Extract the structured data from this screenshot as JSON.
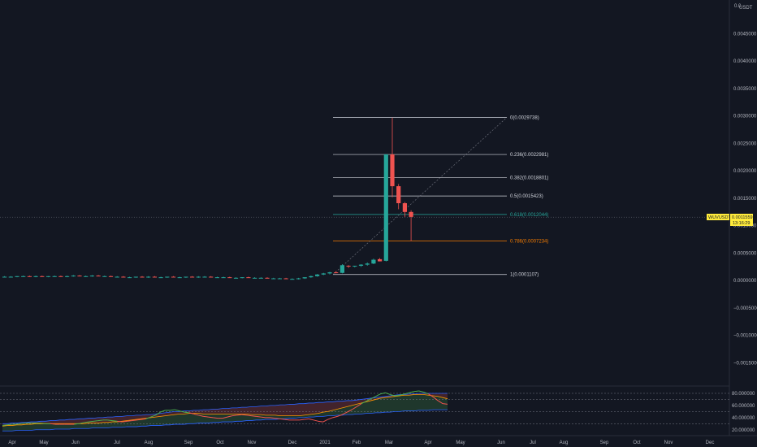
{
  "colors": {
    "background": "#131722",
    "up": "#26a69a",
    "down": "#ef5350",
    "text": "#b2b5be",
    "fib_line": "#d1d4dc",
    "fib_618": "#26a69a",
    "fib_786": "#f57c00",
    "price_tag": "#ffeb3b",
    "rsi_green": "#4caf50",
    "rsi_red": "#ef5350",
    "rsi_orange": "#ff9800",
    "rsi_blue": "#2962ff"
  },
  "price_axis": {
    "unit_label": "USDT",
    "top_label": "0.0",
    "ticks": [
      "0.0045000",
      "0.0040000",
      "0.0035000",
      "0.0030000",
      "0.0025000",
      "0.0020000",
      "0.0015000",
      "0.0010000",
      "0.0005000",
      "0.0000000",
      "−0.0005000",
      "−0.0010000",
      "−0.0015000"
    ]
  },
  "current_price": {
    "symbol": "WUVUSDT",
    "value": "0.0011559",
    "countdown": "13:16:29"
  },
  "indicator_axis": {
    "ticks": [
      "80.000000",
      "60.000000",
      "40.000000",
      "20.000000"
    ]
  },
  "time_axis": {
    "labels": [
      "Apr",
      "May",
      "Jun",
      "Jul",
      "Aug",
      "Sep",
      "Oct",
      "Nov",
      "Dec",
      "2021",
      "Feb",
      "Mar",
      "Apr",
      "May",
      "Jun",
      "Jul",
      "Aug",
      "Sep",
      "Oct",
      "Nov",
      "Dec"
    ]
  },
  "fib_levels": [
    {
      "label": "0(0.0029738)",
      "value": 0.0029738,
      "color": "#d1d4dc"
    },
    {
      "label": "0.236(0.0022981)",
      "value": 0.0022981,
      "color": "#d1d4dc"
    },
    {
      "label": "0.382(0.0018801)",
      "value": 0.0018801,
      "color": "#d1d4dc"
    },
    {
      "label": "0.5(0.0015423)",
      "value": 0.0015423,
      "color": "#d1d4dc"
    },
    {
      "label": "0.618(0.0012044)",
      "value": 0.0012044,
      "color": "#26a69a"
    },
    {
      "label": "0.786(0.0007234)",
      "value": 0.0007234,
      "color": "#f57c00"
    },
    {
      "label": "1(0.0001107)",
      "value": 0.0001107,
      "color": "#d1d4dc"
    }
  ],
  "chart_data": {
    "type": "candlestick",
    "x_unit": "weeks",
    "ylim": [
      -0.00195,
      0.00505
    ],
    "y_ticks": [
      0.0045,
      0.004,
      0.0035,
      0.003,
      0.0025,
      0.002,
      0.0015,
      0.001,
      0.0005,
      0,
      -0.0005,
      -0.001,
      -0.0015
    ],
    "candles": [
      {
        "o": 7e-05,
        "h": 8e-05,
        "l": 6e-05,
        "c": 7e-05
      },
      {
        "o": 7e-05,
        "h": 8e-05,
        "l": 6e-05,
        "c": 7e-05
      },
      {
        "o": 7e-05,
        "h": 8e-05,
        "l": 6e-05,
        "c": 8e-05
      },
      {
        "o": 8e-05,
        "h": 9e-05,
        "l": 7e-05,
        "c": 8e-05
      },
      {
        "o": 8e-05,
        "h": 9e-05,
        "l": 7e-05,
        "c": 7e-05
      },
      {
        "o": 7e-05,
        "h": 9e-05,
        "l": 6e-05,
        "c": 8e-05
      },
      {
        "o": 8e-05,
        "h": 9e-05,
        "l": 7e-05,
        "c": 7e-05
      },
      {
        "o": 7e-05,
        "h": 8e-05,
        "l": 6e-05,
        "c": 8e-05
      },
      {
        "o": 8e-05,
        "h": 9e-05,
        "l": 7e-05,
        "c": 8e-05
      },
      {
        "o": 8e-05,
        "h": 9e-05,
        "l": 7e-05,
        "c": 7e-05
      },
      {
        "o": 7e-05,
        "h": 9e-05,
        "l": 6e-05,
        "c": 8e-05
      },
      {
        "o": 8e-05,
        "h": 0.0001,
        "l": 7e-05,
        "c": 9e-05
      },
      {
        "o": 9e-05,
        "h": 0.0001,
        "l": 8e-05,
        "c": 8e-05
      },
      {
        "o": 8e-05,
        "h": 9e-05,
        "l": 7e-05,
        "c": 8e-05
      },
      {
        "o": 8e-05,
        "h": 0.0001,
        "l": 7e-05,
        "c": 9e-05
      },
      {
        "o": 9e-05,
        "h": 0.0001,
        "l": 8e-05,
        "c": 8e-05
      },
      {
        "o": 8e-05,
        "h": 9e-05,
        "l": 7e-05,
        "c": 8e-05
      },
      {
        "o": 8e-05,
        "h": 9e-05,
        "l": 7e-05,
        "c": 7e-05
      },
      {
        "o": 7e-05,
        "h": 8e-05,
        "l": 6e-05,
        "c": 7e-05
      },
      {
        "o": 7e-05,
        "h": 8e-05,
        "l": 6e-05,
        "c": 6e-05
      },
      {
        "o": 6e-05,
        "h": 7e-05,
        "l": 5e-05,
        "c": 6e-05
      },
      {
        "o": 6e-05,
        "h": 7e-05,
        "l": 5e-05,
        "c": 7e-05
      },
      {
        "o": 7e-05,
        "h": 8e-05,
        "l": 6e-05,
        "c": 6e-05
      },
      {
        "o": 6e-05,
        "h": 8e-05,
        "l": 5e-05,
        "c": 7e-05
      },
      {
        "o": 7e-05,
        "h": 8e-05,
        "l": 6e-05,
        "c": 6e-05
      },
      {
        "o": 6e-05,
        "h": 7e-05,
        "l": 5e-05,
        "c": 6e-05
      },
      {
        "o": 6e-05,
        "h": 7e-05,
        "l": 5e-05,
        "c": 7e-05
      },
      {
        "o": 7e-05,
        "h": 8e-05,
        "l": 6e-05,
        "c": 6e-05
      },
      {
        "o": 6e-05,
        "h": 7e-05,
        "l": 5e-05,
        "c": 6e-05
      },
      {
        "o": 6e-05,
        "h": 7e-05,
        "l": 5e-05,
        "c": 7e-05
      },
      {
        "o": 7e-05,
        "h": 8e-05,
        "l": 6e-05,
        "c": 6e-05
      },
      {
        "o": 6e-05,
        "h": 8e-05,
        "l": 5e-05,
        "c": 7e-05
      },
      {
        "o": 7e-05,
        "h": 8e-05,
        "l": 6e-05,
        "c": 7e-05
      },
      {
        "o": 7e-05,
        "h": 8e-05,
        "l": 6e-05,
        "c": 6e-05
      },
      {
        "o": 6e-05,
        "h": 7e-05,
        "l": 5e-05,
        "c": 6e-05
      },
      {
        "o": 6e-05,
        "h": 7e-05,
        "l": 5e-05,
        "c": 6e-05
      },
      {
        "o": 6e-05,
        "h": 7e-05,
        "l": 5e-05,
        "c": 5e-05
      },
      {
        "o": 5e-05,
        "h": 6e-05,
        "l": 4e-05,
        "c": 5e-05
      },
      {
        "o": 5e-05,
        "h": 6e-05,
        "l": 4e-05,
        "c": 6e-05
      },
      {
        "o": 6e-05,
        "h": 7e-05,
        "l": 5e-05,
        "c": 5e-05
      },
      {
        "o": 5e-05,
        "h": 6e-05,
        "l": 4e-05,
        "c": 5e-05
      },
      {
        "o": 5e-05,
        "h": 6e-05,
        "l": 4e-05,
        "c": 5e-05
      },
      {
        "o": 5e-05,
        "h": 6e-05,
        "l": 4e-05,
        "c": 4e-05
      },
      {
        "o": 4e-05,
        "h": 5e-05,
        "l": 3e-05,
        "c": 4e-05
      },
      {
        "o": 4e-05,
        "h": 5e-05,
        "l": 3e-05,
        "c": 4e-05
      },
      {
        "o": 4e-05,
        "h": 5e-05,
        "l": 3e-05,
        "c": 3e-05
      },
      {
        "o": 3e-05,
        "h": 4e-05,
        "l": 2e-05,
        "c": 3e-05
      },
      {
        "o": 3e-05,
        "h": 5e-05,
        "l": 2e-05,
        "c": 4e-05
      },
      {
        "o": 4e-05,
        "h": 6e-05,
        "l": 3e-05,
        "c": 6e-05
      },
      {
        "o": 6e-05,
        "h": 9e-05,
        "l": 5e-05,
        "c": 8e-05
      },
      {
        "o": 8e-05,
        "h": 0.00012,
        "l": 7e-05,
        "c": 0.00011
      },
      {
        "o": 0.00011,
        "h": 0.00014,
        "l": 0.0001,
        "c": 0.00013
      },
      {
        "o": 0.00013,
        "h": 0.00016,
        "l": 0.00011,
        "c": 0.00015
      },
      {
        "o": 0.00015,
        "h": 0.00017,
        "l": 0.00013,
        "c": 0.00014
      },
      {
        "o": 0.00014,
        "h": 0.0003,
        "l": 0.00013,
        "c": 0.00028
      },
      {
        "o": 0.00027,
        "h": 0.00028,
        "l": 0.00023,
        "c": 0.00026
      },
      {
        "o": 0.00026,
        "h": 0.00027,
        "l": 0.00024,
        "c": 0.00027
      },
      {
        "o": 0.00027,
        "h": 0.0003,
        "l": 0.00025,
        "c": 0.00029
      },
      {
        "o": 0.00029,
        "h": 0.00033,
        "l": 0.00027,
        "c": 0.00031
      },
      {
        "o": 0.00031,
        "h": 0.0004,
        "l": 0.0003,
        "c": 0.00038
      },
      {
        "o": 0.00039,
        "h": 0.00041,
        "l": 0.00035,
        "c": 0.00035
      },
      {
        "o": 0.00036,
        "h": 0.0023,
        "l": 0.00035,
        "c": 0.0023
      },
      {
        "o": 0.0023,
        "h": 0.00297,
        "l": 0.00152,
        "c": 0.00172
      },
      {
        "o": 0.00172,
        "h": 0.00176,
        "l": 0.0013,
        "c": 0.00141
      },
      {
        "o": 0.00141,
        "h": 0.00143,
        "l": 0.00116,
        "c": 0.00125
      },
      {
        "o": 0.00125,
        "h": 0.00128,
        "l": 0.00072,
        "c": 0.00116
      }
    ],
    "indicator": {
      "name": "RSI",
      "ylim": [
        13,
        88
      ],
      "levels": [
        80,
        70,
        50,
        30
      ],
      "rsi": [
        27,
        28,
        29,
        29,
        30,
        31,
        31,
        31,
        31,
        30,
        30,
        29,
        29,
        29,
        29,
        29,
        30,
        32,
        33,
        34,
        35,
        36,
        36,
        35,
        34,
        33,
        34,
        35,
        36,
        37,
        38,
        41,
        44,
        49,
        52,
        52,
        53,
        51,
        49,
        48,
        46,
        44,
        42,
        41,
        40,
        39,
        39,
        41,
        43,
        44,
        45,
        44,
        43,
        42,
        41,
        40,
        40,
        39,
        38,
        37,
        36,
        36,
        36,
        37,
        38,
        36,
        34,
        33,
        37,
        40,
        42,
        45,
        49,
        53,
        58,
        63,
        67,
        71,
        75,
        79,
        81,
        78,
        76,
        77,
        79,
        81,
        83,
        84,
        82,
        79,
        74,
        68,
        63,
        62
      ],
      "rsi_start": 0,
      "ma": [
        26,
        27,
        27,
        28,
        28,
        29,
        29,
        30,
        30,
        30,
        30,
        30,
        30,
        30,
        30,
        30,
        30,
        30,
        31,
        31,
        31,
        32,
        32,
        33,
        33,
        34,
        35,
        36,
        37,
        38,
        39,
        40,
        41,
        42,
        43,
        44,
        45,
        46,
        46,
        47,
        47,
        47,
        46,
        46,
        46,
        46,
        46,
        46,
        46,
        46,
        46,
        46,
        45,
        45,
        45,
        44,
        44,
        44,
        43,
        43,
        43,
        43,
        43,
        44,
        45,
        46,
        47,
        49,
        50,
        52,
        54,
        56,
        58,
        60,
        62,
        64,
        66,
        68,
        70,
        72,
        73,
        74,
        75,
        76,
        77,
        77,
        78,
        78,
        78,
        77,
        76,
        75,
        73,
        71
      ],
      "lower_band": [
        18,
        18,
        18,
        19,
        19,
        19,
        19,
        20,
        20,
        20,
        20,
        21,
        21,
        21,
        21,
        22,
        22,
        22,
        22,
        23,
        23,
        23,
        23,
        24,
        24,
        24,
        25,
        25,
        25,
        26,
        26,
        27,
        27,
        27,
        28,
        28,
        29,
        29,
        29,
        30,
        30,
        31,
        31,
        31,
        32,
        32,
        33,
        33,
        33,
        34,
        34,
        35,
        35,
        36,
        36,
        37,
        37,
        37,
        38,
        38,
        39,
        39,
        40,
        40,
        41,
        41,
        42,
        42,
        43,
        43,
        44,
        44,
        45,
        45,
        46,
        46,
        47,
        47,
        48,
        48,
        49,
        49,
        50,
        50,
        51,
        51,
        51,
        52,
        52,
        52,
        53,
        53,
        53,
        53
      ],
      "upper_band": [
        30,
        30,
        31,
        31,
        32,
        32,
        33,
        33,
        34,
        34,
        35,
        35,
        36,
        36,
        37,
        37,
        38,
        38,
        39,
        39,
        40,
        40,
        41,
        41,
        42,
        42,
        43,
        43,
        44,
        44,
        45,
        45,
        46,
        47,
        48,
        49,
        50,
        50,
        51,
        51,
        52,
        52,
        53,
        53,
        54,
        54,
        55,
        55,
        56,
        56,
        57,
        57,
        58,
        58,
        59,
        59,
        60,
        60,
        61,
        61,
        62,
        62,
        63,
        63,
        64,
        64,
        65,
        65,
        66,
        66,
        67,
        67,
        68,
        68,
        69,
        70,
        71,
        72,
        73,
        74,
        75,
        76,
        77,
        78,
        78,
        79,
        79,
        80,
        80,
        80,
        80,
        80,
        80,
        80
      ]
    }
  }
}
